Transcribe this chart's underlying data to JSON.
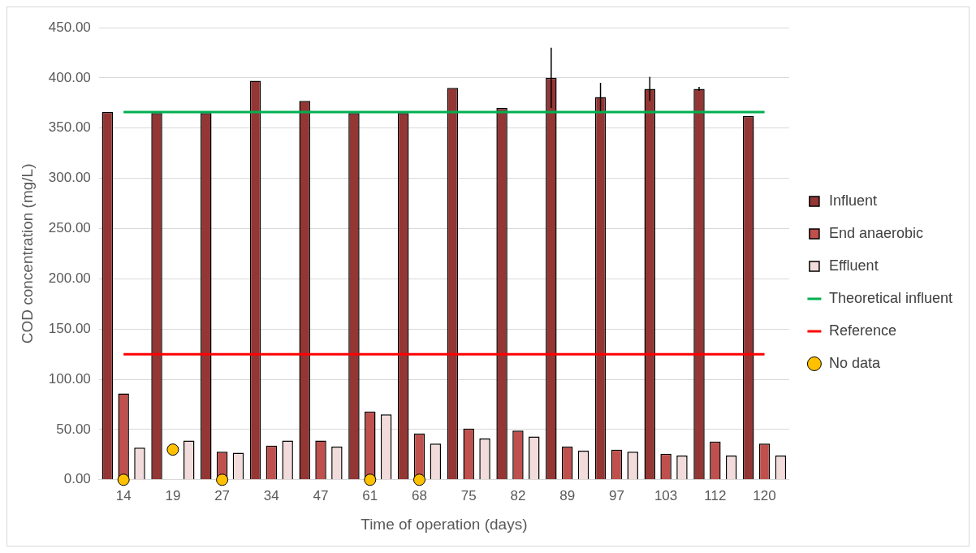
{
  "chart_data": {
    "type": "bar",
    "xlabel": "Time of operation (days)",
    "ylabel": "COD concentration (mg/L)",
    "categories": [
      "14",
      "19",
      "27",
      "34",
      "47",
      "61",
      "68",
      "75",
      "82",
      "89",
      "97",
      "103",
      "112",
      "120"
    ],
    "series": [
      {
        "name": "Influent",
        "color": "#943634",
        "values": [
          366,
          365,
          365,
          397,
          377,
          365,
          365,
          390,
          370,
          400,
          381,
          389,
          389,
          362
        ],
        "errors": [
          null,
          null,
          null,
          null,
          null,
          null,
          null,
          null,
          null,
          30,
          14,
          12,
          2,
          null
        ]
      },
      {
        "name": "End anaerobic",
        "color": "#c0504d",
        "values": [
          86,
          null,
          28,
          34,
          39,
          68,
          46,
          51,
          49,
          33,
          30,
          26,
          38,
          36
        ]
      },
      {
        "name": "Effluent",
        "color": "#f2dcdb",
        "values": [
          32,
          39,
          27,
          39,
          33,
          65,
          36,
          41,
          43,
          29,
          28,
          24,
          24,
          24
        ]
      },
      {
        "name": "Theoretical influent",
        "type": "line",
        "color": "#00b050",
        "values": [
          366,
          366,
          366,
          366,
          366,
          366,
          366,
          366,
          366,
          366,
          366,
          366,
          366,
          366
        ]
      },
      {
        "name": "Reference",
        "type": "line",
        "color": "#ff0000",
        "values": [
          125,
          125,
          125,
          125,
          125,
          125,
          125,
          125,
          125,
          125,
          125,
          125,
          125,
          125
        ]
      },
      {
        "name": "No data",
        "type": "scatter",
        "color": "#ffc000",
        "marker": "circle",
        "x": [
          "14",
          "19",
          "27",
          "61",
          "68"
        ],
        "values": [
          0,
          30,
          0,
          0,
          0
        ]
      }
    ],
    "ylim": [
      0,
      450
    ],
    "yticks": [
      {
        "value": 0,
        "label": "0.00"
      },
      {
        "value": 50,
        "label": "50.00"
      },
      {
        "value": 100,
        "label": "100.00"
      },
      {
        "value": 150,
        "label": "150.00"
      },
      {
        "value": 200,
        "label": "200.00"
      },
      {
        "value": 250,
        "label": "250.00"
      },
      {
        "value": 300,
        "label": "300.00"
      },
      {
        "value": 350,
        "label": "350.00"
      },
      {
        "value": 400,
        "label": "400.00"
      },
      {
        "value": 450,
        "label": "450.00"
      }
    ],
    "grid": "y",
    "legend": "right"
  }
}
